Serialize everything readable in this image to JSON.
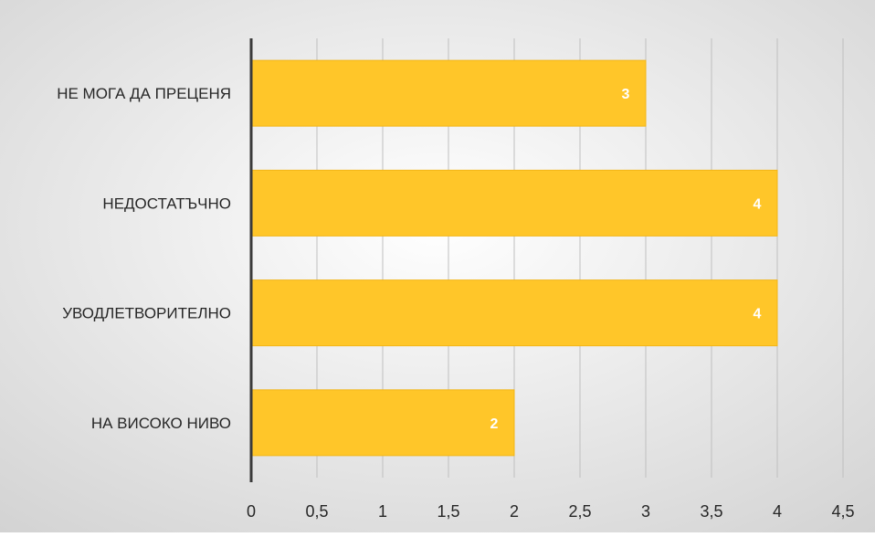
{
  "chart_data": {
    "type": "bar",
    "orientation": "horizontal",
    "categories": [
      "НЕ МОГА ДА ПРЕЦЕНЯ",
      "НЕДОСТАТЪЧНО",
      "УВОДЛЕТВОРИТЕЛНО",
      "НА ВИСОКО НИВО"
    ],
    "values": [
      3,
      4,
      4,
      2
    ],
    "data_labels": [
      "3",
      "4",
      "4",
      "2"
    ],
    "xlim": [
      0,
      4.5
    ],
    "x_ticks": [
      0,
      0.5,
      1,
      1.5,
      2,
      2.5,
      3,
      3.5,
      4,
      4.5
    ],
    "x_tick_labels": [
      "0",
      "0,5",
      "1",
      "1,5",
      "2",
      "2,5",
      "3",
      "3,5",
      "4",
      "4,5"
    ],
    "title": "",
    "xlabel": "",
    "ylabel": "",
    "grid": "vertical",
    "legend": "none",
    "colors": {
      "bar": "#FFC629",
      "bar_edge": "#F2B517",
      "data_label": "#FFFFFF",
      "grid": "#BFBFBF",
      "axis": "#3A3A3A",
      "text": "#262626",
      "bg_light": "#FFFFFF",
      "bg_dark": "#D2D2D2"
    }
  }
}
